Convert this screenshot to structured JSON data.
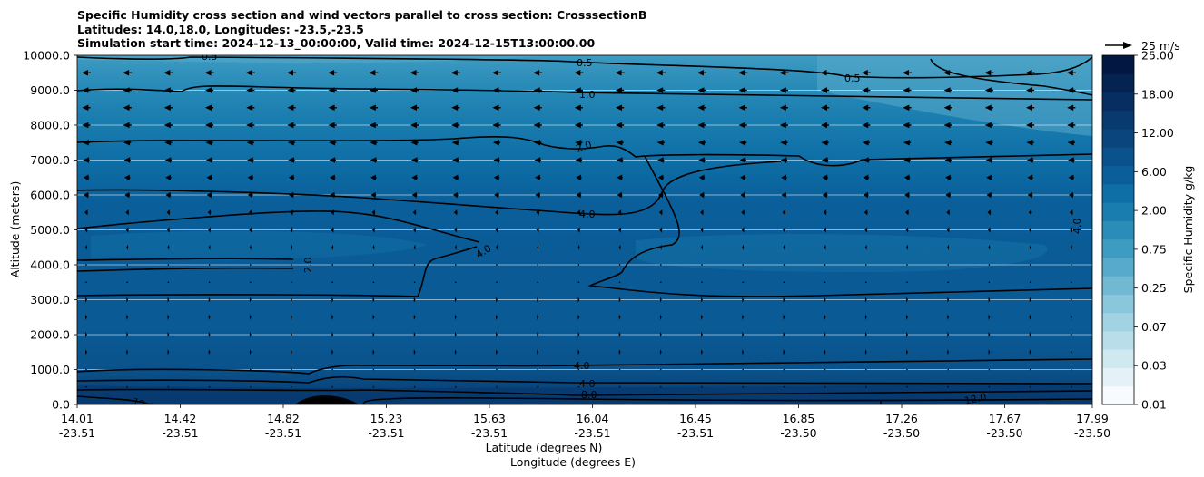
{
  "chart_data": {
    "type": "contour",
    "title_lines": [
      "Specific Humidity cross section and wind vectors parallel to cross section: CrosssectionB",
      "Latitudes: 14.0,18.0, Longitudes: -23.5,-23.5",
      "Simulation start time: 2024-12-13_00:00:00, Valid time: 2024-12-15T13:00:00.00"
    ],
    "xlabel_lines": [
      "Latitude (degrees N)",
      "Longitude (degrees E)"
    ],
    "ylabel": "Altitude (meters)",
    "ylim": [
      0,
      10000
    ],
    "y_ticks": [
      "0.0",
      "1000.0",
      "2000.0",
      "3000.0",
      "4000.0",
      "5000.0",
      "6000.0",
      "7000.0",
      "8000.0",
      "9000.0",
      "10000.0"
    ],
    "x_ticks": [
      {
        "lat": "14.01",
        "lon": "-23.51"
      },
      {
        "lat": "14.42",
        "lon": "-23.51"
      },
      {
        "lat": "14.82",
        "lon": "-23.51"
      },
      {
        "lat": "15.23",
        "lon": "-23.51"
      },
      {
        "lat": "15.63",
        "lon": "-23.51"
      },
      {
        "lat": "16.04",
        "lon": "-23.51"
      },
      {
        "lat": "16.45",
        "lon": "-23.51"
      },
      {
        "lat": "16.85",
        "lon": "-23.50"
      },
      {
        "lat": "17.26",
        "lon": "-23.50"
      },
      {
        "lat": "17.67",
        "lon": "-23.50"
      },
      {
        "lat": "17.99",
        "lon": "-23.50"
      }
    ],
    "colorbar": {
      "label": "Specific Humidity g/kg",
      "tick_labels": [
        "0.01",
        "0.03",
        "0.07",
        "0.25",
        "0.75",
        "2.00",
        "6.00",
        "12.00",
        "18.00",
        "25.00"
      ],
      "colors": [
        "#f7fbfd",
        "#e4f2f7",
        "#d0e9f1",
        "#b9deea",
        "#a2d3e3",
        "#8ac6dc",
        "#71b8d3",
        "#57aacb",
        "#3e9bc2",
        "#2a8cb8",
        "#1a7daf",
        "#0e6ea6",
        "#0a5f9a",
        "#0a528b",
        "#0a467d",
        "#083a6f",
        "#062e60",
        "#042350",
        "#021842"
      ]
    },
    "contour_levels": [
      0.5,
      1.0,
      2.0,
      4.0,
      8.0,
      12.0
    ],
    "contour_label_texts": [
      "0.5",
      "0.5",
      "0.5",
      "1.0",
      "2.0",
      "2.0",
      "4.0",
      "4.0",
      "4.0",
      "4.0",
      "4.0",
      "8.0",
      "12.0",
      "12.0"
    ],
    "wind_key": {
      "label": "25 m/s",
      "speed_ms": 25
    },
    "wind_rows": [
      {
        "alt": 9500,
        "u": -11
      },
      {
        "alt": 9000,
        "u": -10
      },
      {
        "alt": 8500,
        "u": -10
      },
      {
        "alt": 8000,
        "u": -10
      },
      {
        "alt": 7500,
        "u": -9
      },
      {
        "alt": 7000,
        "u": -8
      },
      {
        "alt": 6500,
        "u": -7
      },
      {
        "alt": 6000,
        "u": -6
      },
      {
        "alt": 5500,
        "u": -4
      },
      {
        "alt": 5000,
        "u": -3
      },
      {
        "alt": 4500,
        "u": -2
      },
      {
        "alt": 4000,
        "u": -1
      },
      {
        "alt": 3500,
        "u": 1
      },
      {
        "alt": 3000,
        "u": 2
      },
      {
        "alt": 2500,
        "u": 2
      },
      {
        "alt": 2000,
        "u": 2
      },
      {
        "alt": 1500,
        "u": 2
      },
      {
        "alt": 1000,
        "u": 1
      },
      {
        "alt": 500,
        "u": 1
      }
    ]
  }
}
